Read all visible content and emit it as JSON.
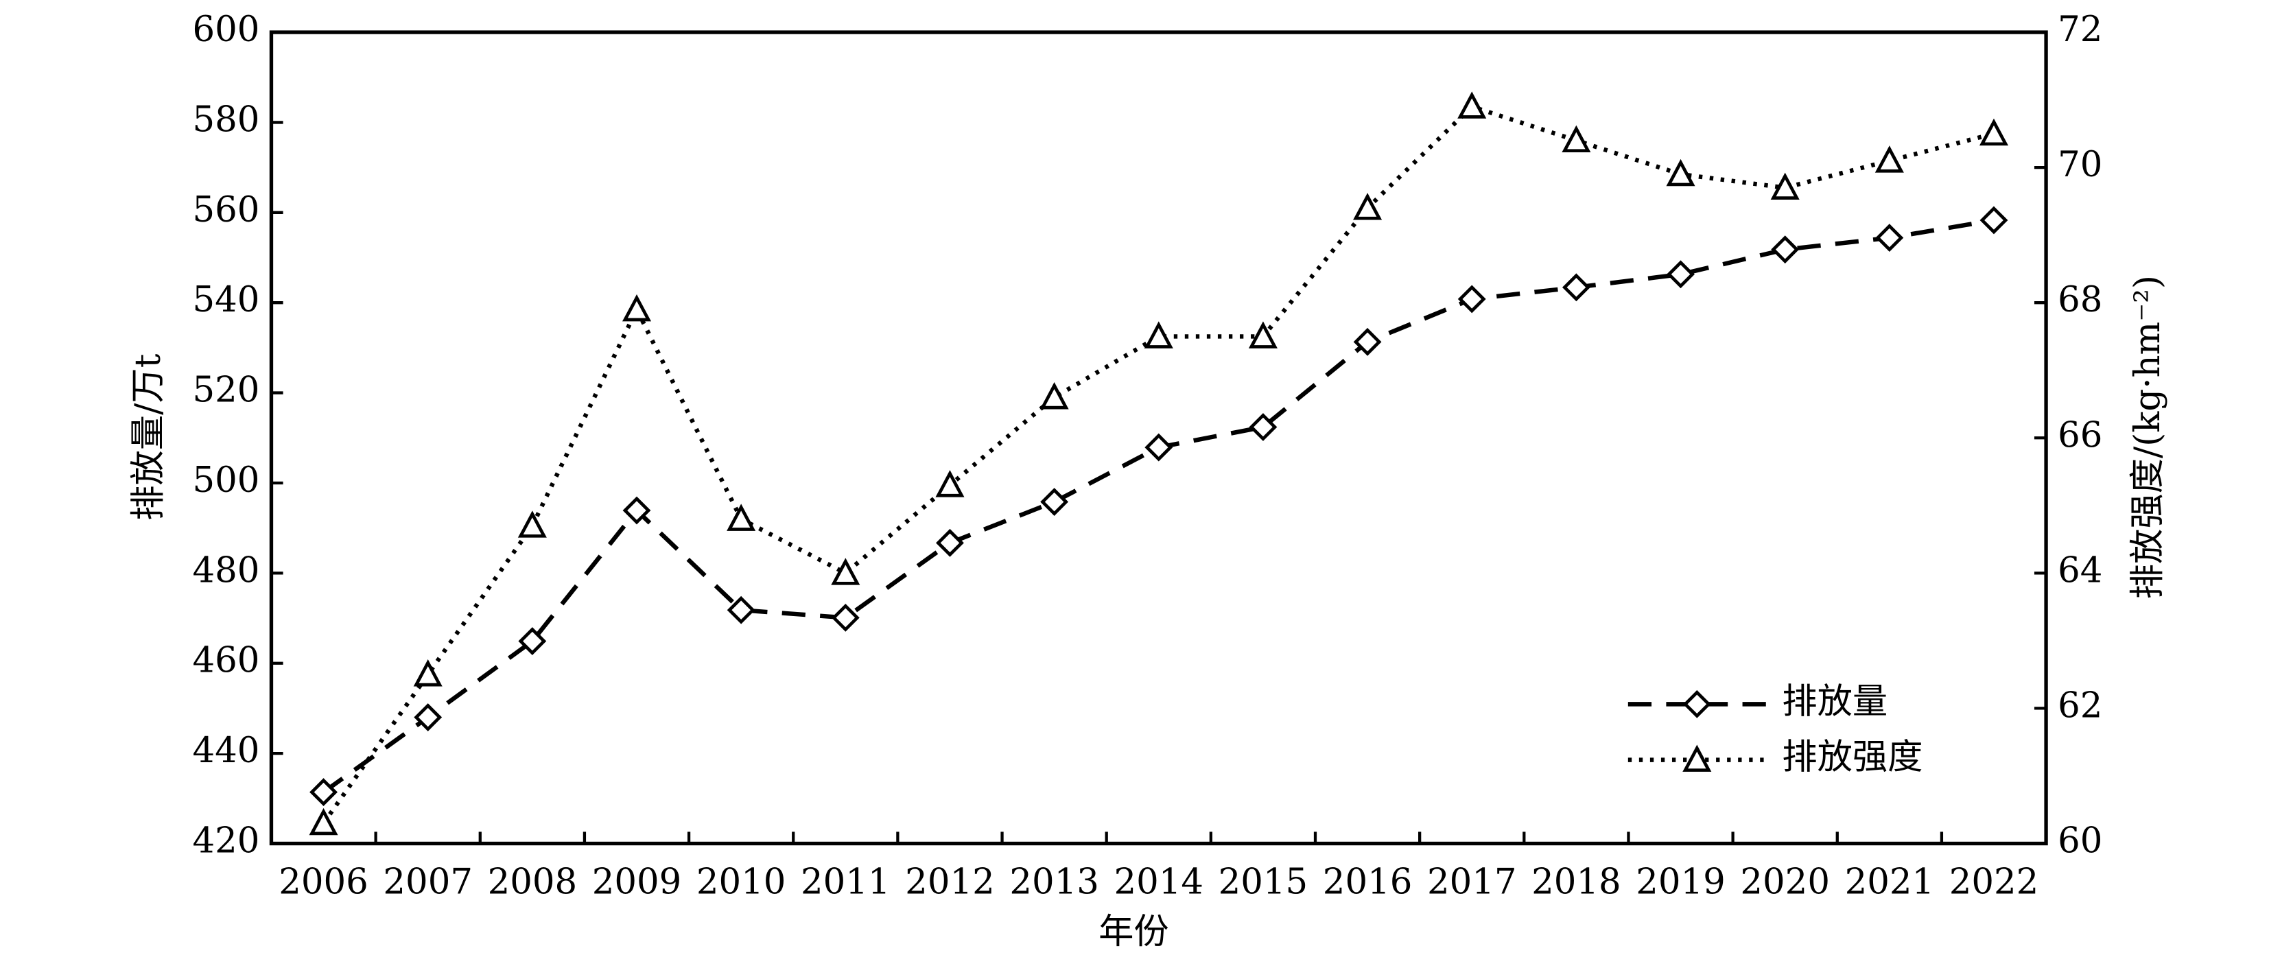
{
  "chart_data": {
    "type": "line",
    "xlabel": "年份",
    "ylabel": "排放量/万t",
    "y2label": "排放强度/(kg·hm⁻²)",
    "categories": [
      "2006",
      "2007",
      "2008",
      "2009",
      "2010",
      "2011",
      "2012",
      "2013",
      "2014",
      "2015",
      "2016",
      "2017",
      "2018",
      "2019",
      "2020",
      "2021",
      "2022"
    ],
    "ylim": [
      420,
      600
    ],
    "yticks": [
      420,
      440,
      460,
      480,
      500,
      520,
      540,
      560,
      580,
      600
    ],
    "y2lim": [
      60,
      72
    ],
    "y2ticks": [
      60,
      62,
      64,
      66,
      68,
      70,
      72
    ],
    "legend": "lower right",
    "series": [
      {
        "name": "排放量",
        "color": "#000000",
        "marker": "diamond",
        "linestyle": "dashed",
        "values": [
          431.4,
          448,
          464.9,
          493.9,
          471.8,
          470.1,
          486.7,
          495.8,
          507.9,
          512.4,
          531.3,
          540.8,
          543.4,
          546.3,
          551.8,
          554.4,
          558.3
        ]
      },
      {
        "name": "排放强度",
        "color": "#000000",
        "marker": "triangle",
        "linestyle": "dotted",
        "axis": "y2",
        "values": [
          60.3,
          62.5,
          64.7,
          67.9,
          64.8,
          64.0,
          65.3,
          66.6,
          67.5,
          67.5,
          69.4,
          70.9,
          70.4,
          69.9,
          69.7,
          70.1,
          70.5
        ]
      }
    ]
  }
}
